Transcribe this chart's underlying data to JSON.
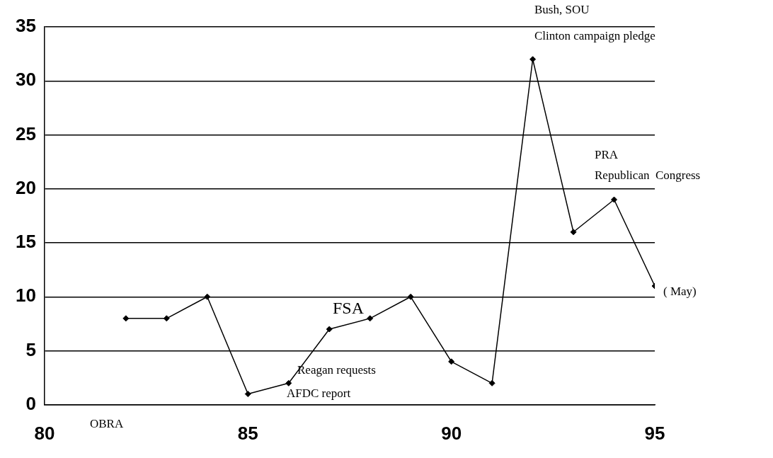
{
  "chart_data": {
    "type": "line",
    "x": [
      82,
      83,
      84,
      85,
      86,
      87,
      88,
      89,
      90,
      91,
      92,
      93,
      94,
      95
    ],
    "series": [
      {
        "color": "#000000",
        "values": [
          8,
          8,
          10,
          1,
          2,
          7,
          8,
          10,
          4,
          2,
          32,
          16,
          19,
          11
        ]
      }
    ],
    "xlim": [
      80,
      95
    ],
    "xticks": [
      80,
      85,
      90,
      95
    ],
    "ylim": [
      0,
      35
    ],
    "yticks": [
      0,
      5,
      10,
      15,
      20,
      25,
      30,
      35
    ],
    "grid": "y",
    "legend": false,
    "marker": "diamond",
    "line_style": "solid",
    "annotations": [
      "OBRA",
      "Reagan requests",
      "AFDC report",
      "FSA",
      "Bush, SOU",
      "Clinton campaign pledge",
      "PRA",
      "Republican  Congress",
      "( May)"
    ]
  }
}
